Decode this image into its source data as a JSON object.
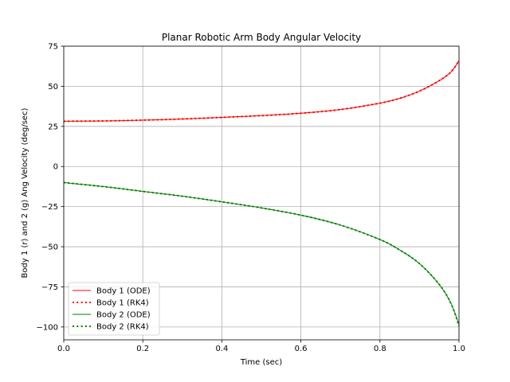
{
  "chart_data": {
    "type": "line",
    "title": "Planar Robotic Arm Body Angular Velocity",
    "xlabel": "Time (sec)",
    "ylabel": "Body 1 (r) and 2 (g) Ang Velocity (deg/sec)",
    "xlim": [
      0.0,
      1.0
    ],
    "ylim": [
      -108,
      75
    ],
    "xticks": [
      0.0,
      0.2,
      0.4,
      0.6,
      0.8,
      1.0
    ],
    "xtick_labels": [
      "0.0",
      "0.2",
      "0.4",
      "0.6",
      "0.8",
      "1.0"
    ],
    "yticks": [
      75,
      50,
      25,
      0,
      -25,
      -50,
      -75,
      -100
    ],
    "ytick_labels": [
      "75",
      "50",
      "25",
      "0",
      "−25",
      "−50",
      "−75",
      "−100"
    ],
    "grid": true,
    "legend_position": "lower-left",
    "series": [
      {
        "name": "Body 1 (ODE)",
        "color": "#ff0000",
        "style": "solid",
        "x": [
          0.0,
          0.1,
          0.2,
          0.3,
          0.4,
          0.5,
          0.6,
          0.7,
          0.8,
          0.85,
          0.9,
          0.95,
          0.98,
          1.0
        ],
        "y": [
          28.2,
          28.4,
          28.9,
          29.6,
          30.6,
          31.7,
          33.2,
          35.5,
          39.5,
          42.5,
          47.0,
          53.5,
          59.0,
          66.0
        ]
      },
      {
        "name": "Body 1 (RK4)",
        "color": "#ff0000",
        "style": "dotted",
        "x": [
          0.0,
          0.1,
          0.2,
          0.3,
          0.4,
          0.5,
          0.6,
          0.7,
          0.8,
          0.85,
          0.9,
          0.95,
          0.98,
          1.0
        ],
        "y": [
          28.2,
          28.4,
          28.9,
          29.6,
          30.6,
          31.7,
          33.2,
          35.5,
          39.5,
          42.5,
          47.0,
          53.5,
          59.0,
          66.0
        ]
      },
      {
        "name": "Body 2 (ODE)",
        "color": "#008000",
        "style": "solid",
        "x": [
          0.0,
          0.1,
          0.2,
          0.3,
          0.4,
          0.5,
          0.6,
          0.7,
          0.8,
          0.85,
          0.9,
          0.95,
          0.98,
          1.0
        ],
        "y": [
          -10.0,
          -12.5,
          -15.5,
          -18.5,
          -22.0,
          -25.8,
          -30.3,
          -36.5,
          -45.5,
          -52.0,
          -60.5,
          -73.5,
          -85.5,
          -98.5
        ]
      },
      {
        "name": "Body 2 (RK4)",
        "color": "#008000",
        "style": "dotted",
        "x": [
          0.0,
          0.1,
          0.2,
          0.3,
          0.4,
          0.5,
          0.6,
          0.7,
          0.8,
          0.85,
          0.9,
          0.95,
          0.98,
          1.0
        ],
        "y": [
          -10.0,
          -12.5,
          -15.5,
          -18.5,
          -22.0,
          -25.8,
          -30.3,
          -36.5,
          -45.5,
          -52.0,
          -60.5,
          -73.5,
          -85.5,
          -99.5
        ]
      }
    ]
  }
}
